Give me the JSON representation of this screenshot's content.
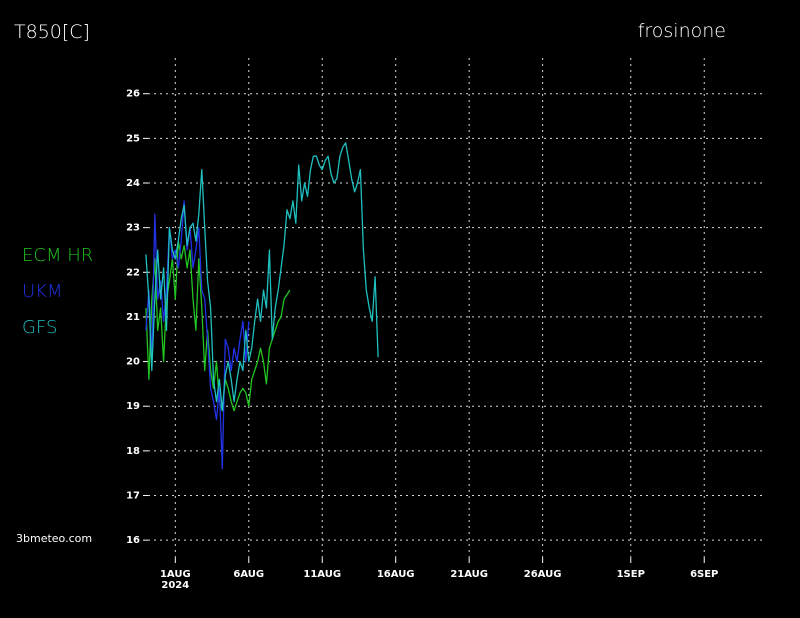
{
  "chart_data": {
    "type": "line",
    "title": "T850[C]",
    "subtitle": "frosinone",
    "source": "3bmeteo.com",
    "year_label": "2024",
    "xlim": [
      -1.2,
      41
    ],
    "ylim": [
      15.6,
      26.8
    ],
    "xticks": [
      {
        "value": 1,
        "label": "1AUG"
      },
      {
        "value": 6,
        "label": "6AUG"
      },
      {
        "value": 11,
        "label": "11AUG"
      },
      {
        "value": 16,
        "label": "16AUG"
      },
      {
        "value": 21,
        "label": "21AUG"
      },
      {
        "value": 26,
        "label": "26AUG"
      },
      {
        "value": 32,
        "label": "1SEP"
      },
      {
        "value": 37,
        "label": "6SEP"
      }
    ],
    "yticks": [
      16,
      17,
      18,
      19,
      20,
      21,
      22,
      23,
      24,
      25,
      26
    ],
    "grid": true,
    "series": [
      {
        "name": "ECM HR",
        "color": "#22c422",
        "x": [
          -1,
          -0.8,
          -0.6,
          -0.4,
          -0.2,
          0,
          0.2,
          0.4,
          0.6,
          0.8,
          1,
          1.2,
          1.4,
          1.6,
          1.8,
          2,
          2.2,
          2.4,
          2.6,
          2.8,
          3,
          3.2,
          3.4,
          3.6,
          3.8,
          4,
          4.2,
          4.4,
          4.6,
          4.8,
          5,
          5.2,
          5.4,
          5.6,
          5.8,
          6,
          6.2,
          6.4,
          6.6,
          6.8,
          7,
          7.2,
          7.4,
          7.6,
          7.8,
          8,
          8.2,
          8.4,
          8.6,
          8.8
        ],
        "values": [
          21.2,
          19.6,
          21.4,
          22.3,
          20.7,
          21.2,
          20.0,
          21.4,
          21.8,
          22.3,
          21.4,
          22.7,
          22.3,
          22.6,
          22.1,
          22.5,
          21.4,
          20.7,
          22.3,
          21.2,
          19.8,
          20.7,
          19.8,
          19.4,
          20.0,
          19.1,
          18.9,
          19.6,
          19.4,
          19.1,
          18.9,
          19.1,
          19.3,
          19.4,
          19.3,
          19.0,
          19.6,
          19.8,
          20.0,
          20.3,
          20.0,
          19.5,
          20.3,
          20.5,
          20.7,
          20.9,
          21.0,
          21.4,
          21.5,
          21.6
        ]
      },
      {
        "name": "UKM",
        "color": "#2232e6",
        "x": [
          -1,
          -0.8,
          -0.6,
          -0.4,
          -0.2,
          0,
          0.2,
          0.4,
          0.6,
          0.8,
          1,
          1.2,
          1.4,
          1.6,
          1.8,
          2,
          2.2,
          2.4,
          2.6,
          2.8,
          3,
          3.2,
          3.4,
          3.6,
          3.8,
          4,
          4.2,
          4.4,
          4.6,
          4.8,
          5,
          5.2,
          5.4,
          5.6,
          5.8,
          6
        ],
        "values": [
          20.7,
          21.6,
          20.0,
          23.3,
          21.4,
          21.8,
          20.9,
          21.6,
          23.0,
          22.3,
          22.5,
          22.1,
          22.7,
          23.6,
          22.5,
          23.0,
          22.1,
          22.5,
          23.0,
          21.6,
          21.4,
          20.5,
          19.4,
          19.1,
          18.7,
          19.4,
          17.6,
          20.5,
          20.3,
          19.8,
          20.3,
          20.0,
          20.5,
          20.9,
          20.0,
          20.9
        ]
      },
      {
        "name": "GFS",
        "color": "#20c0c0",
        "x": [
          -1,
          -0.8,
          -0.6,
          -0.4,
          -0.2,
          0,
          0.2,
          0.4,
          0.6,
          0.8,
          1,
          1.2,
          1.4,
          1.6,
          1.8,
          2,
          2.2,
          2.4,
          2.6,
          2.8,
          3,
          3.2,
          3.4,
          3.6,
          3.8,
          4,
          4.2,
          4.4,
          4.6,
          4.8,
          5,
          5.2,
          5.4,
          5.6,
          5.8,
          6,
          6.2,
          6.4,
          6.6,
          6.8,
          7,
          7.2,
          7.4,
          7.6,
          7.8,
          8,
          8.2,
          8.4,
          8.6,
          8.8,
          9,
          9.2,
          9.4,
          9.6,
          9.8,
          10,
          10.2,
          10.4,
          10.6,
          10.8,
          11,
          11.2,
          11.4,
          11.6,
          11.8,
          12,
          12.2,
          12.4,
          12.6,
          12.8,
          13,
          13.2,
          13.4,
          13.6,
          13.8,
          14,
          14.2,
          14.4,
          14.6,
          14.8
        ],
        "values": [
          22.4,
          21.4,
          19.8,
          21.4,
          22.5,
          21.4,
          22.1,
          20.7,
          23.0,
          22.5,
          22.3,
          22.7,
          23.2,
          23.5,
          22.6,
          23.0,
          23.1,
          22.7,
          23.3,
          24.3,
          23.0,
          21.8,
          21.2,
          19.6,
          19.1,
          19.6,
          18.9,
          19.7,
          20.0,
          19.6,
          19.1,
          19.6,
          20.0,
          19.8,
          20.7,
          20.0,
          20.3,
          20.9,
          21.4,
          20.9,
          21.6,
          21.2,
          22.5,
          20.5,
          21.2,
          21.6,
          22.1,
          22.6,
          23.4,
          23.2,
          23.6,
          23.1,
          24.4,
          23.6,
          24.0,
          23.7,
          24.3,
          24.6,
          24.6,
          24.4,
          24.3,
          24.5,
          24.6,
          24.2,
          24.0,
          24.1,
          24.6,
          24.8,
          24.9,
          24.5,
          24.1,
          23.8,
          24.0,
          24.3,
          22.5,
          21.6,
          21.2,
          20.9,
          21.9,
          20.1
        ]
      }
    ]
  }
}
